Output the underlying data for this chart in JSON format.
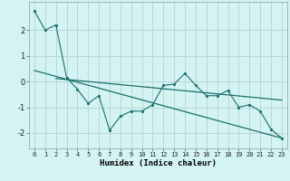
{
  "title": "",
  "xlabel": "Humidex (Indice chaleur)",
  "bg_color": "#d4f4f4",
  "grid_color": "#b8d8d8",
  "line_color": "#1a6e6a",
  "xlim": [
    -0.5,
    23.5
  ],
  "ylim": [
    -2.6,
    3.1
  ],
  "yticks": [
    -2,
    -1,
    0,
    1,
    2
  ],
  "xticks": [
    0,
    1,
    2,
    3,
    4,
    5,
    6,
    7,
    8,
    9,
    10,
    11,
    12,
    13,
    14,
    15,
    16,
    17,
    18,
    19,
    20,
    21,
    22,
    23
  ],
  "zigzag_x": [
    0,
    1,
    2,
    3,
    4,
    5,
    6,
    7,
    8,
    9,
    10,
    11,
    12,
    13,
    14,
    15,
    16,
    17,
    18,
    19,
    20,
    21,
    22,
    23
  ],
  "zigzag_y": [
    2.75,
    2.0,
    2.2,
    0.15,
    -0.3,
    -0.85,
    -0.55,
    -1.9,
    -1.35,
    -1.15,
    -1.15,
    -0.9,
    -0.15,
    -0.1,
    0.32,
    -0.15,
    -0.55,
    -0.55,
    -0.35,
    -1.0,
    -0.9,
    -1.15,
    -1.85,
    -2.2
  ],
  "trend1_x": [
    0,
    23
  ],
  "trend1_y": [
    0.43,
    -2.2
  ],
  "trend2_x": [
    2,
    23
  ],
  "trend2_y": [
    0.12,
    -0.72
  ]
}
